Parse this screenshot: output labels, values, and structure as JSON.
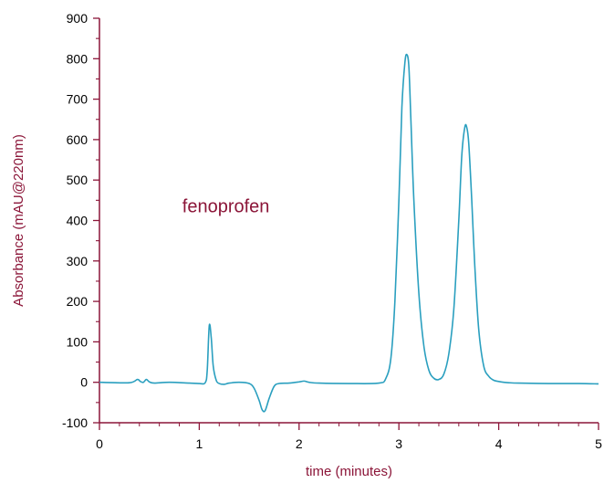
{
  "chart_data": {
    "type": "line",
    "title": "",
    "xlabel": "time (minutes)",
    "ylabel": "Absorbance (mAU@220nm)",
    "xlim": [
      0,
      5
    ],
    "ylim": [
      -100,
      900
    ],
    "xticks": [
      0,
      1,
      2,
      3,
      4,
      5
    ],
    "yticks": [
      -100,
      0,
      100,
      200,
      300,
      400,
      500,
      600,
      700,
      800,
      900
    ],
    "grid": false,
    "legend": "none",
    "annotations": [
      {
        "text": "fenoprofen",
        "x": 0.83,
        "y": 420
      }
    ],
    "colors": {
      "series": "#2a9fbf",
      "axis": "#8b1538",
      "tick_text": "#000000"
    },
    "series": [
      {
        "values_note": "",
        "x": [
          0.0,
          0.3,
          0.38,
          0.41,
          0.44,
          0.47,
          0.5,
          0.55,
          0.7,
          0.9,
          1.0,
          1.06,
          1.08,
          1.1,
          1.12,
          1.14,
          1.17,
          1.2,
          1.25,
          1.3,
          1.4,
          1.5,
          1.55,
          1.6,
          1.63,
          1.66,
          1.7,
          1.75,
          1.8,
          1.9,
          2.0,
          2.05,
          2.1,
          2.2,
          2.5,
          2.8,
          2.87,
          2.92,
          2.96,
          3.0,
          3.03,
          3.06,
          3.08,
          3.1,
          3.12,
          3.15,
          3.2,
          3.25,
          3.3,
          3.35,
          3.4,
          3.45,
          3.5,
          3.55,
          3.6,
          3.63,
          3.66,
          3.68,
          3.7,
          3.73,
          3.76,
          3.8,
          3.85,
          3.9,
          3.95,
          4.0,
          4.05,
          4.1,
          4.2,
          4.5,
          4.8,
          5.0
        ],
        "y": [
          0,
          -1,
          7,
          2,
          0,
          7,
          1,
          -2,
          0,
          -2,
          -3,
          -1,
          30,
          140,
          110,
          40,
          5,
          -3,
          -5,
          -2,
          0,
          -3,
          -15,
          -45,
          -68,
          -70,
          -40,
          -10,
          -3,
          -2,
          1,
          3,
          0,
          -2,
          -3,
          -2,
          10,
          60,
          200,
          450,
          680,
          790,
          810,
          780,
          650,
          450,
          220,
          90,
          30,
          10,
          7,
          20,
          70,
          180,
          400,
          560,
          630,
          630,
          590,
          450,
          290,
          130,
          40,
          15,
          5,
          2,
          0,
          -1,
          -2,
          -3,
          -3,
          -4
        ]
      }
    ]
  }
}
